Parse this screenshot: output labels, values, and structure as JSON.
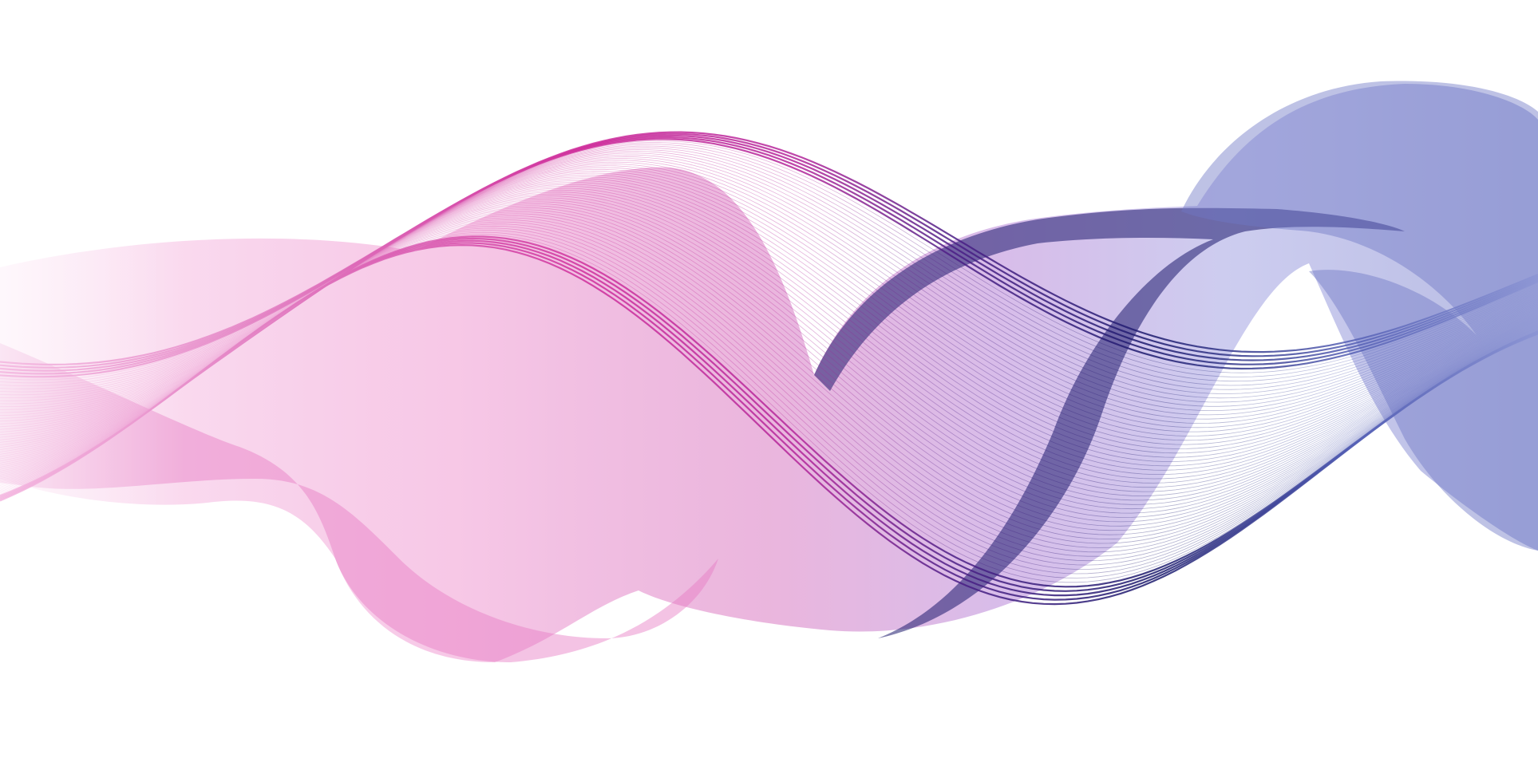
{
  "scene": {
    "background": "#ffffff",
    "subject": "abstract-ribbon-wave",
    "colors": {
      "magenta": "#c2188f",
      "pink_light": "#f3c6e6",
      "violet": "#8c4fbf",
      "navy": "#1b1a6b",
      "periwinkle": "#6f78c4",
      "lavender": "#c9b9ee"
    }
  }
}
